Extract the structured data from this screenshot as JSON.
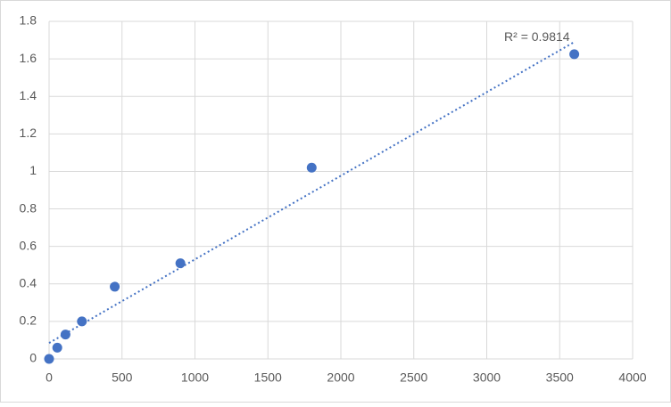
{
  "chart_data": {
    "type": "scatter",
    "series": [
      {
        "color": "#4472c4",
        "x": [
          0,
          56.25,
          112.5,
          225,
          450,
          900,
          1800,
          3600
        ],
        "values": [
          0,
          0.06,
          0.13,
          0.2,
          0.385,
          0.51,
          1.02,
          1.625
        ]
      }
    ],
    "trendline": {
      "x": [
        0,
        3600
      ],
      "values": [
        0.085,
        1.69
      ],
      "label": "R² = 0.9814",
      "color": "#4472c4"
    },
    "xlim": [
      0,
      4000
    ],
    "xticks": [
      0,
      500,
      1000,
      1500,
      2000,
      2500,
      3000,
      3500,
      4000
    ],
    "ylim": [
      0,
      1.8
    ],
    "yticks": [
      0,
      0.2,
      0.4,
      0.6,
      0.8,
      1,
      1.2,
      1.4,
      1.6,
      1.8
    ],
    "grid": true
  }
}
